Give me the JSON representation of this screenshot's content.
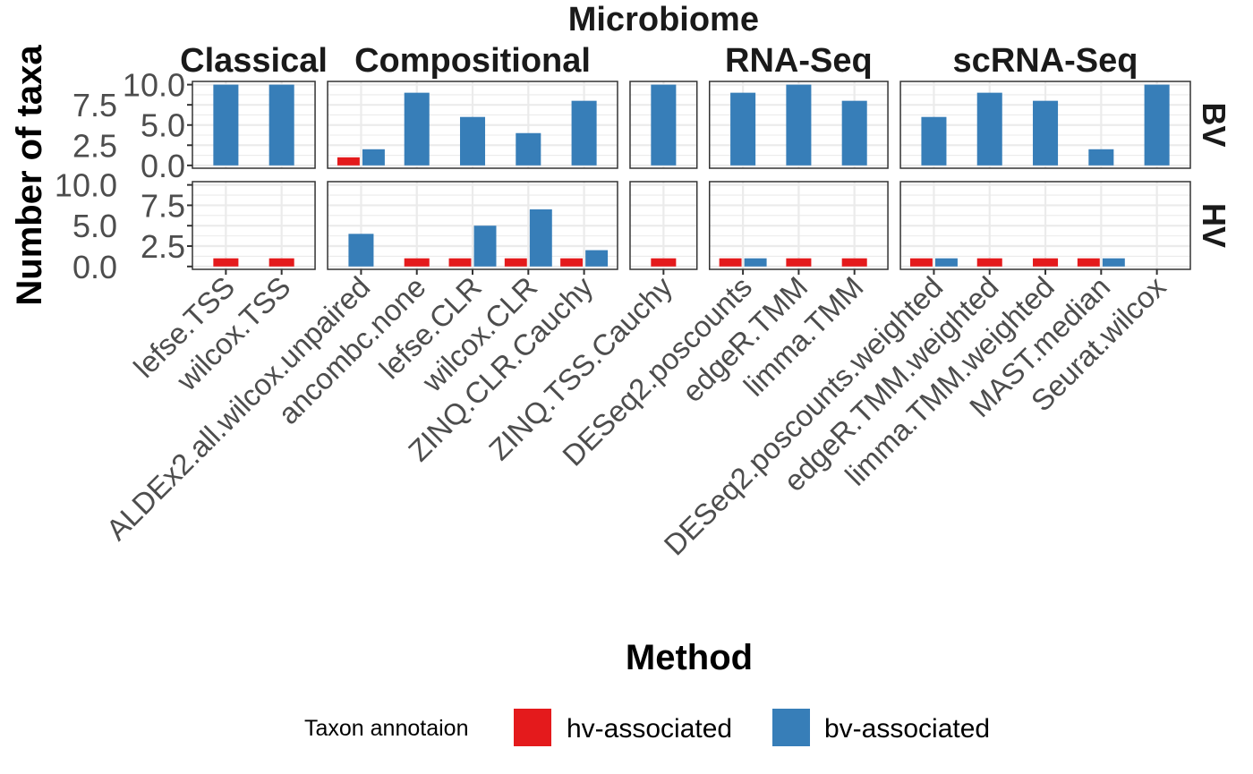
{
  "chart_data": {
    "type": "bar",
    "xlabel": "Method",
    "ylabel": "Number of taxa",
    "ylim": [
      0,
      10
    ],
    "yticks": [
      "0.0",
      "2.5",
      "5.0",
      "7.5",
      "10.0"
    ],
    "grid": true,
    "legend": {
      "title": "Taxon annotaion",
      "placement": "bottom",
      "entries": [
        {
          "key": "hv",
          "label": "hv-associated",
          "color": "#E41A1C"
        },
        {
          "key": "bv",
          "label": "bv-associated",
          "color": "#377EB8"
        }
      ]
    },
    "rows": [
      "BV",
      "HV"
    ],
    "columns": [
      {
        "name": "Classical",
        "methods": [
          "lefse.TSS",
          "wilcox.TSS"
        ]
      },
      {
        "name": "Compositional",
        "methods": [
          "ALDEx2.all.wilcox.unpaired",
          "ancombc.none",
          "lefse.CLR",
          "wilcox.CLR",
          "ZINQ.CLR.Cauchy"
        ]
      },
      {
        "name": "Microbiome",
        "methods": [
          "ZINQ.TSS.Cauchy"
        ]
      },
      {
        "name": "RNA-Seq",
        "methods": [
          "DESeq2.poscounts",
          "edgeR.TMM",
          "limma.TMM"
        ]
      },
      {
        "name": "scRNA-Seq",
        "methods": [
          "DESeq2.poscounts.weighted",
          "edgeR.TMM.weighted",
          "limma.TMM.weighted",
          "MAST.median",
          "Seurat.wilcox"
        ]
      }
    ],
    "data": {
      "BV": {
        "lefse.TSS": {
          "bv": 10
        },
        "wilcox.TSS": {
          "bv": 10
        },
        "ALDEx2.all.wilcox.unpaired": {
          "hv": 1,
          "bv": 2
        },
        "ancombc.none": {
          "bv": 9
        },
        "lefse.CLR": {
          "bv": 6
        },
        "wilcox.CLR": {
          "bv": 4
        },
        "ZINQ.CLR.Cauchy": {
          "bv": 8
        },
        "ZINQ.TSS.Cauchy": {
          "bv": 10
        },
        "DESeq2.poscounts": {
          "bv": 9
        },
        "edgeR.TMM": {
          "bv": 10
        },
        "limma.TMM": {
          "bv": 8
        },
        "DESeq2.poscounts.weighted": {
          "bv": 6
        },
        "edgeR.TMM.weighted": {
          "bv": 9
        },
        "limma.TMM.weighted": {
          "bv": 8
        },
        "MAST.median": {
          "bv": 2
        },
        "Seurat.wilcox": {
          "bv": 10
        }
      },
      "HV": {
        "lefse.TSS": {
          "hv": 1
        },
        "wilcox.TSS": {
          "hv": 1
        },
        "ALDEx2.all.wilcox.unpaired": {
          "bv": 4
        },
        "ancombc.none": {
          "hv": 1
        },
        "lefse.CLR": {
          "hv": 1,
          "bv": 5
        },
        "wilcox.CLR": {
          "hv": 1,
          "bv": 7
        },
        "ZINQ.CLR.Cauchy": {
          "hv": 1,
          "bv": 2
        },
        "ZINQ.TSS.Cauchy": {
          "hv": 1
        },
        "DESeq2.poscounts": {
          "hv": 1,
          "bv": 1
        },
        "edgeR.TMM": {
          "hv": 1
        },
        "limma.TMM": {
          "hv": 1
        },
        "DESeq2.poscounts.weighted": {
          "hv": 1,
          "bv": 1
        },
        "edgeR.TMM.weighted": {
          "hv": 1
        },
        "limma.TMM.weighted": {
          "hv": 1
        },
        "MAST.median": {
          "hv": 1,
          "bv": 1
        },
        "Seurat.wilcox": {}
      }
    }
  }
}
